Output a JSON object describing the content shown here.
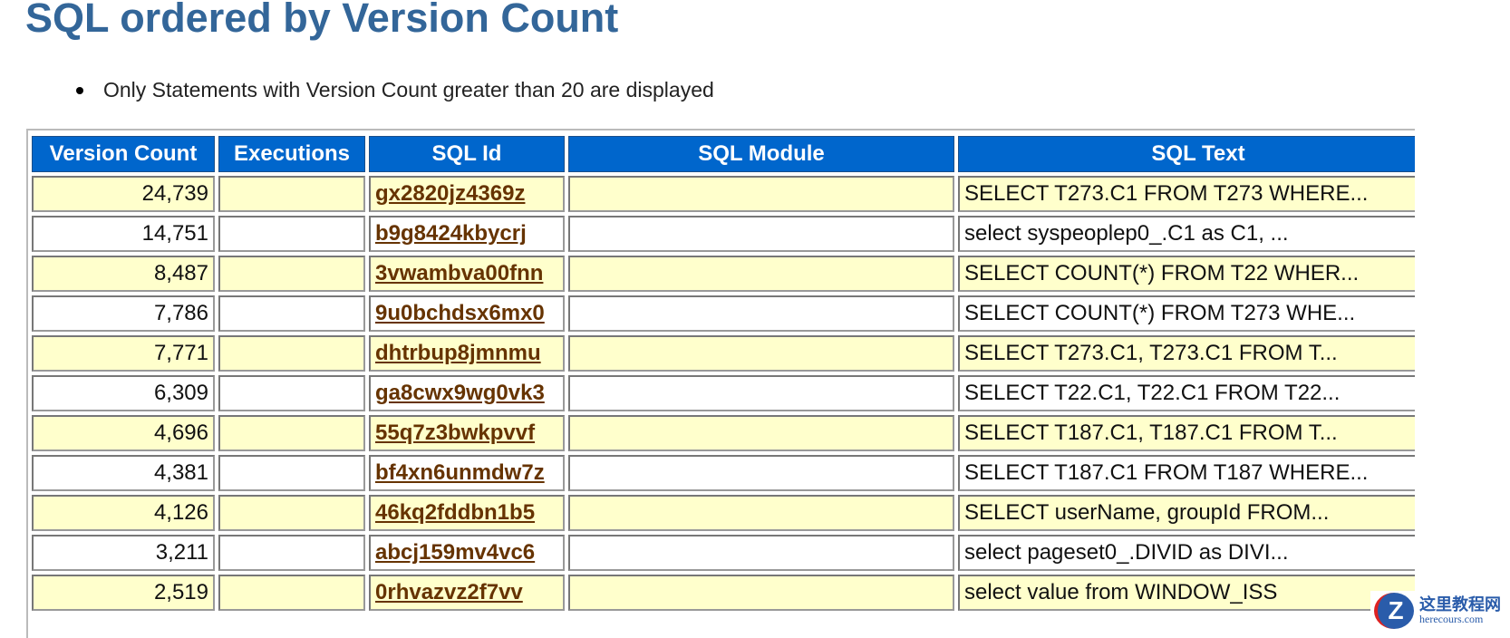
{
  "title": "SQL ordered by Version Count",
  "note": "Only Statements with Version Count greater than 20 are displayed",
  "colors": {
    "header_bg": "#0066cc",
    "row_odd": "#ffffcc",
    "row_even": "#ffffff",
    "title": "#336699",
    "link": "#663300"
  },
  "table": {
    "headers": [
      "Version Count",
      "Executions",
      "SQL Id",
      "SQL Module",
      "SQL Text"
    ],
    "rows": [
      {
        "version_count": "24,739",
        "executions": "",
        "sql_id": "gx2820jz4369z",
        "sql_module": "",
        "sql_text": "SELECT T273.C1 FROM T273 WHERE..."
      },
      {
        "version_count": "14,751",
        "executions": "",
        "sql_id": "b9g8424kbycrj",
        "sql_module": "",
        "sql_text": "select syspeoplep0_.C1 as C1, ..."
      },
      {
        "version_count": "8,487",
        "executions": "",
        "sql_id": "3vwambva00fnn",
        "sql_module": "",
        "sql_text": "SELECT COUNT(*) FROM T22 WHER..."
      },
      {
        "version_count": "7,786",
        "executions": "",
        "sql_id": "9u0bchdsx6mx0",
        "sql_module": "",
        "sql_text": "SELECT COUNT(*) FROM T273 WHE..."
      },
      {
        "version_count": "7,771",
        "executions": "",
        "sql_id": "dhtrbup8jmnmu",
        "sql_module": "",
        "sql_text": "SELECT T273.C1, T273.C1 FROM T..."
      },
      {
        "version_count": "6,309",
        "executions": "",
        "sql_id": "ga8cwx9wg0vk3",
        "sql_module": "",
        "sql_text": "SELECT T22.C1, T22.C1 FROM T22..."
      },
      {
        "version_count": "4,696",
        "executions": "",
        "sql_id": "55q7z3bwkpvvf",
        "sql_module": "",
        "sql_text": "SELECT T187.C1, T187.C1 FROM T..."
      },
      {
        "version_count": "4,381",
        "executions": "",
        "sql_id": "bf4xn6unmdw7z",
        "sql_module": "",
        "sql_text": "SELECT T187.C1 FROM T187 WHERE..."
      },
      {
        "version_count": "4,126",
        "executions": "",
        "sql_id": "46kq2fddbn1b5",
        "sql_module": "",
        "sql_text": "SELECT userName, groupId FROM..."
      },
      {
        "version_count": "3,211",
        "executions": "",
        "sql_id": "abcj159mv4vc6",
        "sql_module": "",
        "sql_text": "select pageset0_.DIVID as DIVI..."
      },
      {
        "version_count": "2,519",
        "executions": "",
        "sql_id": "0rhvazvz2f7vv",
        "sql_module": "",
        "sql_text": "select value from WINDOW_ISS"
      }
    ]
  },
  "watermark": {
    "cn": "这里教程网",
    "en": "herecours.com",
    "icon": "z-logo-icon"
  }
}
